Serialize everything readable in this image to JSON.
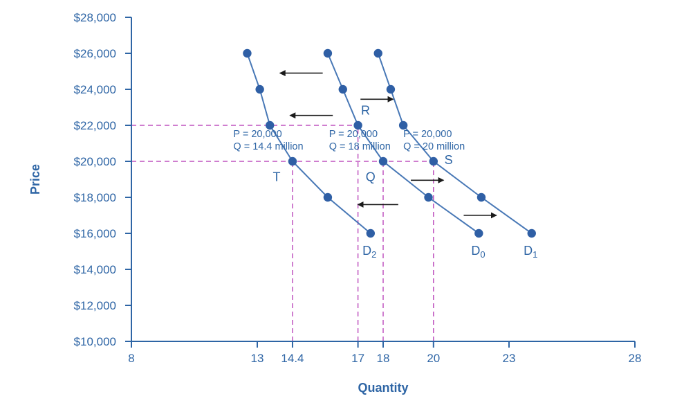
{
  "chart_data": {
    "type": "line",
    "title": "",
    "xlabel": "Quantity",
    "ylabel": "Price",
    "xlim": [
      8,
      28
    ],
    "ylim": [
      10000,
      28000
    ],
    "grid": false,
    "legend": "none",
    "colors": {
      "axis": "#2e65a5",
      "text": "#2e65a5",
      "curve": "#4878b6",
      "dot": "#2f5fa5",
      "dashed": "#bf54bf",
      "arrow": "#1a1a1a"
    },
    "x_ticks": [
      {
        "value": 8,
        "label": "8"
      },
      {
        "value": 13,
        "label": "13"
      },
      {
        "value": 14.4,
        "label": "14.4"
      },
      {
        "value": 17,
        "label": "17"
      },
      {
        "value": 18,
        "label": "18"
      },
      {
        "value": 20,
        "label": "20"
      },
      {
        "value": 23,
        "label": "23"
      },
      {
        "value": 28,
        "label": "28"
      }
    ],
    "y_ticks": [
      {
        "value": 10000,
        "label": "$10,000"
      },
      {
        "value": 12000,
        "label": "$12,000"
      },
      {
        "value": 14000,
        "label": "$14,000"
      },
      {
        "value": 16000,
        "label": "$16,000"
      },
      {
        "value": 18000,
        "label": "$18,000"
      },
      {
        "value": 20000,
        "label": "$20,000"
      },
      {
        "value": 22000,
        "label": "$22,000"
      },
      {
        "value": 24000,
        "label": "$24,000"
      },
      {
        "value": 26000,
        "label": "$26,000"
      },
      {
        "value": 28000,
        "label": "$28,000"
      }
    ],
    "series": [
      {
        "name": "D2",
        "label_base": "D",
        "label_sub": "2",
        "label_at": [
          17.18,
          14800
        ],
        "points": [
          [
            12.6,
            26000
          ],
          [
            13.1,
            24000
          ],
          [
            13.5,
            22000
          ],
          [
            14.4,
            20000
          ],
          [
            15.8,
            18000
          ],
          [
            17.5,
            16000
          ]
        ]
      },
      {
        "name": "D0",
        "label_base": "D",
        "label_sub": "0",
        "label_at": [
          21.5,
          14800
        ],
        "points": [
          [
            15.8,
            26000
          ],
          [
            16.4,
            24000
          ],
          [
            17,
            22000
          ],
          [
            18,
            20000
          ],
          [
            19.8,
            18000
          ],
          [
            21.8,
            16000
          ]
        ]
      },
      {
        "name": "D1",
        "label_base": "D",
        "label_sub": "1",
        "label_at": [
          23.58,
          14800
        ],
        "points": [
          [
            17.8,
            26000
          ],
          [
            18.3,
            24000
          ],
          [
            18.8,
            22000
          ],
          [
            20,
            20000
          ],
          [
            21.9,
            18000
          ],
          [
            23.9,
            16000
          ]
        ]
      }
    ],
    "point_labels": [
      {
        "text": "R",
        "at": [
          17.3,
          22600
        ]
      },
      {
        "text": "Q",
        "at": [
          17.5,
          18900
        ]
      },
      {
        "text": "S",
        "at": [
          20.6,
          19850
        ]
      },
      {
        "text": "T",
        "at": [
          13.77,
          18900
        ]
      }
    ],
    "annotations": [
      {
        "lines": [
          "P = 20,000",
          "Q = 14.4 million"
        ],
        "at": [
          12.05,
          21350
        ]
      },
      {
        "lines": [
          "P = 20,000",
          "Q = 18 million"
        ],
        "at": [
          15.85,
          21350
        ]
      },
      {
        "lines": [
          "P = 20,000",
          "Q = 20 million"
        ],
        "at": [
          18.8,
          21350
        ]
      }
    ],
    "dashed_lines": [
      {
        "x1": 8,
        "y1": 22000,
        "x2": 17,
        "y2": 22000
      },
      {
        "x1": 8,
        "y1": 20000,
        "x2": 20,
        "y2": 20000
      },
      {
        "x1": 14.4,
        "y1": 10000,
        "x2": 14.4,
        "y2": 20000
      },
      {
        "x1": 17,
        "y1": 10000,
        "x2": 17,
        "y2": 22000
      },
      {
        "x1": 18,
        "y1": 10000,
        "x2": 18,
        "y2": 20000
      },
      {
        "x1": 20,
        "y1": 10000,
        "x2": 20,
        "y2": 20000
      }
    ],
    "arrows": [
      {
        "x1": 15.6,
        "y1": 24900,
        "x2": 13.9,
        "y2": 24900,
        "direction": "left"
      },
      {
        "x1": 16.0,
        "y1": 22550,
        "x2": 14.3,
        "y2": 22550,
        "direction": "left"
      },
      {
        "x1": 17.1,
        "y1": 23450,
        "x2": 18.4,
        "y2": 23450,
        "direction": "right"
      },
      {
        "x1": 19.1,
        "y1": 18950,
        "x2": 20.4,
        "y2": 18950,
        "direction": "right"
      },
      {
        "x1": 18.6,
        "y1": 17600,
        "x2": 17.0,
        "y2": 17600,
        "direction": "left"
      },
      {
        "x1": 21.2,
        "y1": 17000,
        "x2": 22.5,
        "y2": 17000,
        "direction": "right"
      }
    ]
  }
}
